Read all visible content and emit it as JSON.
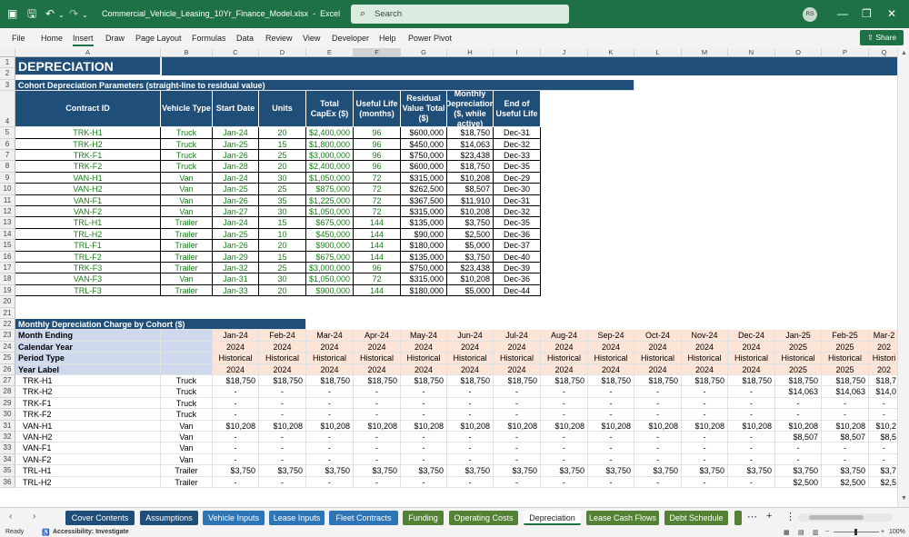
{
  "app": {
    "filename": "Commercial_Vehicle_Leasing_10Yr_Finance_Model.xlsx",
    "app_name": "Excel",
    "search_placeholder": "Search",
    "user_initials": "RS",
    "share_label": "Share"
  },
  "menu": [
    "File",
    "Home",
    "Insert",
    "Draw",
    "Page Layout",
    "Formulas",
    "Data",
    "Review",
    "View",
    "Developer",
    "Help",
    "Power Pivot"
  ],
  "columns": [
    "A",
    "B",
    "C",
    "D",
    "E",
    "F",
    "G",
    "H",
    "I",
    "J",
    "K",
    "L",
    "M",
    "N",
    "O",
    "P",
    "Q"
  ],
  "rows": [
    "1",
    "2",
    "3",
    "4",
    "5",
    "6",
    "7",
    "8",
    "9",
    "10",
    "11",
    "12",
    "13",
    "14",
    "15",
    "16",
    "17",
    "18",
    "19",
    "20",
    "21",
    "22",
    "23",
    "24",
    "25",
    "26",
    "27",
    "28",
    "29",
    "30",
    "31",
    "32",
    "33",
    "34",
    "35",
    "36"
  ],
  "sheet": {
    "title": "DEPRECIATION",
    "section1_title": "Cohort Depreciation Parameters (straight-line to residual value)",
    "table1_headers": [
      "Contract ID",
      "Vehicle Type",
      "Start Date",
      "Units",
      "Total CapEx ($)",
      "Useful Life (months)",
      "Residual Value Total ($)",
      "Monthly Depreciation ($, while active)",
      "End of Useful Life"
    ],
    "table1_rows": [
      [
        "TRK-H1",
        "Truck",
        "Jan-24",
        "20",
        "$2,400,000",
        "96",
        "$600,000",
        "$18,750",
        "Dec-31"
      ],
      [
        "TRK-H2",
        "Truck",
        "Jan-25",
        "15",
        "$1,800,000",
        "96",
        "$450,000",
        "$14,063",
        "Dec-32"
      ],
      [
        "TRK-F1",
        "Truck",
        "Jan-26",
        "25",
        "$3,000,000",
        "96",
        "$750,000",
        "$23,438",
        "Dec-33"
      ],
      [
        "TRK-F2",
        "Truck",
        "Jan-28",
        "20",
        "$2,400,000",
        "96",
        "$600,000",
        "$18,750",
        "Dec-35"
      ],
      [
        "VAN-H1",
        "Van",
        "Jan-24",
        "30",
        "$1,050,000",
        "72",
        "$315,000",
        "$10,208",
        "Dec-29"
      ],
      [
        "VAN-H2",
        "Van",
        "Jan-25",
        "25",
        "$875,000",
        "72",
        "$262,500",
        "$8,507",
        "Dec-30"
      ],
      [
        "VAN-F1",
        "Van",
        "Jan-26",
        "35",
        "$1,225,000",
        "72",
        "$367,500",
        "$11,910",
        "Dec-31"
      ],
      [
        "VAN-F2",
        "Van",
        "Jan-27",
        "30",
        "$1,050,000",
        "72",
        "$315,000",
        "$10,208",
        "Dec-32"
      ],
      [
        "TRL-H1",
        "Trailer",
        "Jan-24",
        "15",
        "$675,000",
        "144",
        "$135,000",
        "$3,750",
        "Dec-35"
      ],
      [
        "TRL-H2",
        "Trailer",
        "Jan-25",
        "10",
        "$450,000",
        "144",
        "$90,000",
        "$2,500",
        "Dec-36"
      ],
      [
        "TRL-F1",
        "Trailer",
        "Jan-26",
        "20",
        "$900,000",
        "144",
        "$180,000",
        "$5,000",
        "Dec-37"
      ],
      [
        "TRL-F2",
        "Trailer",
        "Jan-29",
        "15",
        "$675,000",
        "144",
        "$135,000",
        "$3,750",
        "Dec-40"
      ],
      [
        "TRK-F3",
        "Trailer",
        "Jan-32",
        "25",
        "$3,000,000",
        "96",
        "$750,000",
        "$23,438",
        "Dec-39"
      ],
      [
        "VAN-F3",
        "Van",
        "Jan-31",
        "30",
        "$1,050,000",
        "72",
        "$315,000",
        "$10,208",
        "Dec-36"
      ],
      [
        "TRL-F3",
        "Trailer",
        "Jan-33",
        "20",
        "$900,000",
        "144",
        "$180,000",
        "$5,000",
        "Dec-44"
      ]
    ],
    "section2_title": "Monthly Depreciation Charge by Cohort ($)",
    "timeline_labels": [
      "Month Ending",
      "Calendar Year",
      "Period Type",
      "Year Label"
    ],
    "months": [
      "Jan-24",
      "Feb-24",
      "Mar-24",
      "Apr-24",
      "May-24",
      "Jun-24",
      "Jul-24",
      "Aug-24",
      "Sep-24",
      "Oct-24",
      "Nov-24",
      "Dec-24",
      "Jan-25",
      "Feb-25",
      "Mar-2"
    ],
    "years": [
      "2024",
      "2024",
      "2024",
      "2024",
      "2024",
      "2024",
      "2024",
      "2024",
      "2024",
      "2024",
      "2024",
      "2024",
      "2025",
      "2025",
      "202"
    ],
    "period_types": [
      "Historical",
      "Historical",
      "Historical",
      "Historical",
      "Historical",
      "Historical",
      "Historical",
      "Historical",
      "Historical",
      "Historical",
      "Historical",
      "Historical",
      "Historical",
      "Historical",
      "Histori"
    ],
    "year_labels": [
      "2024",
      "2024",
      "2024",
      "2024",
      "2024",
      "2024",
      "2024",
      "2024",
      "2024",
      "2024",
      "2024",
      "2024",
      "2025",
      "2025",
      "202"
    ],
    "cohort_rows": [
      {
        "id": "TRK-H1",
        "type": "Truck",
        "vals": [
          "$18,750",
          "$18,750",
          "$18,750",
          "$18,750",
          "$18,750",
          "$18,750",
          "$18,750",
          "$18,750",
          "$18,750",
          "$18,750",
          "$18,750",
          "$18,750",
          "$18,750",
          "$18,750",
          "$18,7"
        ]
      },
      {
        "id": "TRK-H2",
        "type": "Truck",
        "vals": [
          "-",
          "-",
          "-",
          "-",
          "-",
          "-",
          "-",
          "-",
          "-",
          "-",
          "-",
          "-",
          "$14,063",
          "$14,063",
          "$14,0"
        ]
      },
      {
        "id": "TRK-F1",
        "type": "Truck",
        "vals": [
          "-",
          "-",
          "-",
          "-",
          "-",
          "-",
          "-",
          "-",
          "-",
          "-",
          "-",
          "-",
          "-",
          "-",
          "-"
        ]
      },
      {
        "id": "TRK-F2",
        "type": "Truck",
        "vals": [
          "-",
          "-",
          "-",
          "-",
          "-",
          "-",
          "-",
          "-",
          "-",
          "-",
          "-",
          "-",
          "-",
          "-",
          "-"
        ]
      },
      {
        "id": "VAN-H1",
        "type": "Van",
        "vals": [
          "$10,208",
          "$10,208",
          "$10,208",
          "$10,208",
          "$10,208",
          "$10,208",
          "$10,208",
          "$10,208",
          "$10,208",
          "$10,208",
          "$10,208",
          "$10,208",
          "$10,208",
          "$10,208",
          "$10,2"
        ]
      },
      {
        "id": "VAN-H2",
        "type": "Van",
        "vals": [
          "-",
          "-",
          "-",
          "-",
          "-",
          "-",
          "-",
          "-",
          "-",
          "-",
          "-",
          "-",
          "$8,507",
          "$8,507",
          "$8,5"
        ]
      },
      {
        "id": "VAN-F1",
        "type": "Van",
        "vals": [
          "-",
          "-",
          "-",
          "-",
          "-",
          "-",
          "-",
          "-",
          "-",
          "-",
          "-",
          "-",
          "-",
          "-",
          "-"
        ]
      },
      {
        "id": "VAN-F2",
        "type": "Van",
        "vals": [
          "-",
          "-",
          "-",
          "-",
          "-",
          "-",
          "-",
          "-",
          "-",
          "-",
          "-",
          "-",
          "-",
          "-",
          "-"
        ]
      },
      {
        "id": "TRL-H1",
        "type": "Trailer",
        "vals": [
          "$3,750",
          "$3,750",
          "$3,750",
          "$3,750",
          "$3,750",
          "$3,750",
          "$3,750",
          "$3,750",
          "$3,750",
          "$3,750",
          "$3,750",
          "$3,750",
          "$3,750",
          "$3,750",
          "$3,7"
        ]
      },
      {
        "id": "TRL-H2",
        "type": "Trailer",
        "vals": [
          "-",
          "-",
          "-",
          "-",
          "-",
          "-",
          "-",
          "-",
          "-",
          "-",
          "-",
          "-",
          "$2,500",
          "$2,500",
          "$2,5"
        ]
      }
    ]
  },
  "tabs": [
    {
      "label": "Cover Contents",
      "color": "#1f4e79"
    },
    {
      "label": "Assumptions",
      "color": "#1f4e79"
    },
    {
      "label": "Vehicle Inputs",
      "color": "#2e75b6"
    },
    {
      "label": "Lease Inputs",
      "color": "#2e75b6"
    },
    {
      "label": "Fleet Contracts",
      "color": "#2e75b6"
    },
    {
      "label": "Funding",
      "color": "#548235"
    },
    {
      "label": "Operating Costs",
      "color": "#548235"
    },
    {
      "label": "Depreciation",
      "color": "#ffffff",
      "active": true
    },
    {
      "label": "Lease Cash Flows",
      "color": "#548235"
    },
    {
      "label": "Debt Schedule",
      "color": "#548235"
    }
  ],
  "status": {
    "ready": "Ready",
    "accessibility": "Accessibility: Investigate",
    "zoom": "100%"
  }
}
